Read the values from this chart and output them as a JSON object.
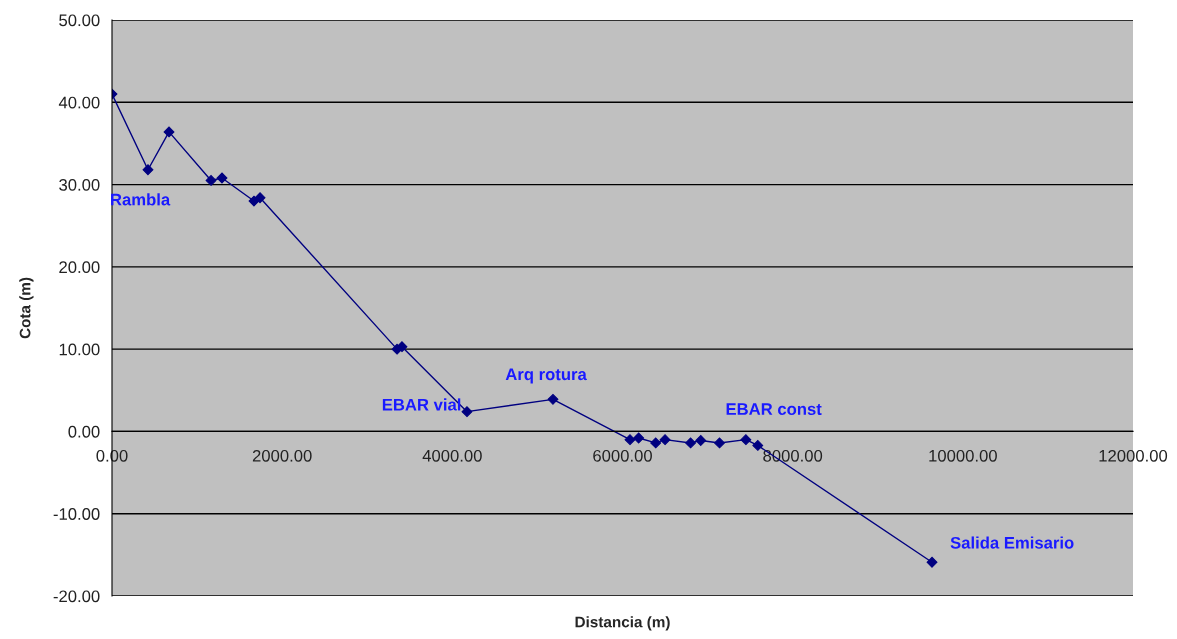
{
  "chart_data": {
    "type": "line",
    "xlabel": "Distancia (m)",
    "ylabel": "Cota (m)",
    "x": [
      0,
      423,
      670,
      1164,
      1293,
      1669,
      1740,
      3350,
      3408,
      4172,
      5183,
      6088,
      6190,
      6390,
      6500,
      6800,
      6920,
      7140,
      7450,
      7590,
      9638
    ],
    "series": [
      {
        "color": "#000080",
        "values": [
          41.0,
          31.8,
          36.4,
          30.5,
          30.8,
          28.0,
          28.4,
          10.0,
          10.3,
          2.4,
          3.9,
          -1.0,
          -0.8,
          -1.4,
          -1.0,
          -1.4,
          -1.1,
          -1.4,
          -1.0,
          -1.7,
          -15.9
        ]
      }
    ],
    "xlim": [
      0,
      12000
    ],
    "xticks": [
      {
        "value": 0,
        "label": "0.00"
      },
      {
        "value": 2000,
        "label": "2000.00"
      },
      {
        "value": 4000,
        "label": "4000.00"
      },
      {
        "value": 6000,
        "label": "6000.00"
      },
      {
        "value": 8000,
        "label": "8000.00"
      },
      {
        "value": 10000,
        "label": "10000.00"
      },
      {
        "value": 12000,
        "label": "12000.00"
      }
    ],
    "ylim": [
      -20,
      50
    ],
    "yticks": [
      {
        "value": -20,
        "label": "-20.00"
      },
      {
        "value": -10,
        "label": "-10.00"
      },
      {
        "value": 0,
        "label": "0.00"
      },
      {
        "value": 10,
        "label": "10.00"
      },
      {
        "value": 20,
        "label": "20.00"
      },
      {
        "value": 30,
        "label": "30.00"
      },
      {
        "value": 40,
        "label": "40.00"
      },
      {
        "value": 50,
        "label": "50.00"
      }
    ],
    "grid": "y",
    "marker": "diamond",
    "line_style": "solid",
    "legend": false,
    "annotations": [
      "Rambla",
      {
        "text": "EBAR vial",
        "x": 4172,
        "y": 2.4
      },
      {
        "text": "Arq rotura",
        "x": 5183,
        "y": 3.9
      },
      {
        "text": "EBAR const",
        "x": 7450,
        "y": -1.0
      },
      {
        "text": "Salida Emisario",
        "x": 9638,
        "y": -15.9
      }
    ]
  }
}
